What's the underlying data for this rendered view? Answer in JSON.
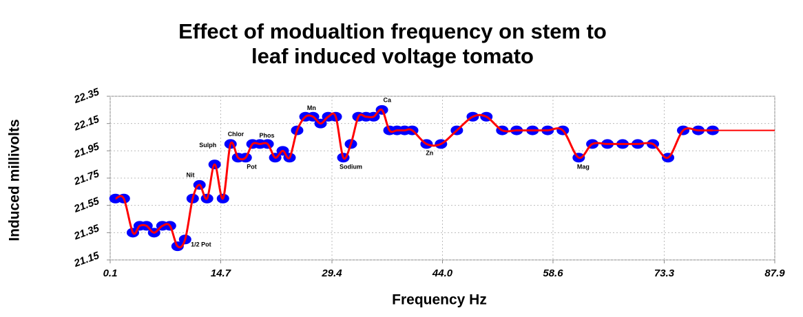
{
  "chart_data": {
    "type": "line",
    "title": [
      "Effect of modualtion frequency on stem to",
      "leaf induced voltage tomato"
    ],
    "x_label": "Frequency Hz",
    "y_label": "Induced millivolts",
    "xlim": [
      0.1,
      87.9
    ],
    "ylim": [
      21.15,
      22.35
    ],
    "xticks": [
      0.1,
      14.7,
      29.4,
      {
        "value": 44.0,
        "label": "44.0"
      },
      58.6,
      73.3,
      87.9
    ],
    "yticks": [
      21.15,
      21.35,
      21.55,
      21.75,
      21.95,
      22.15,
      22.35
    ],
    "grid": true,
    "x": [
      0.8,
      1.9,
      3.1,
      4.0,
      4.9,
      5.9,
      7.0,
      8.0,
      9.0,
      10.0,
      11.0,
      11.9,
      12.9,
      13.9,
      15.0,
      16.0,
      17.0,
      18.0,
      18.9,
      19.9,
      20.9,
      21.9,
      22.9,
      23.8,
      24.8,
      25.9,
      26.9,
      27.9,
      28.9,
      29.9,
      30.9,
      31.9,
      32.9,
      33.9,
      34.9,
      36.0,
      37.0,
      38.0,
      39.0,
      40.0,
      41.9,
      43.8,
      45.9,
      48.0,
      49.8,
      51.9,
      53.8,
      55.9,
      57.9,
      59.9,
      62.0,
      63.8,
      65.8,
      67.8,
      69.8,
      71.8,
      73.8,
      75.8,
      77.8,
      79.7
    ],
    "series": [
      {
        "color": "#ff0000",
        "marker_color": "#0000ff",
        "values": [
          21.6,
          21.6,
          21.35,
          21.4,
          21.4,
          21.35,
          21.4,
          21.4,
          21.25,
          21.3,
          21.6,
          21.7,
          21.6,
          21.85,
          21.6,
          22.0,
          21.9,
          21.9,
          22.0,
          22.0,
          22.0,
          21.9,
          21.95,
          21.9,
          22.1,
          22.2,
          22.2,
          22.15,
          22.2,
          22.2,
          21.9,
          22.0,
          22.2,
          22.2,
          22.2,
          22.25,
          22.1,
          22.1,
          22.1,
          22.1,
          22.0,
          22.0,
          22.1,
          22.2,
          22.2,
          22.1,
          22.1,
          22.1,
          22.1,
          22.1,
          21.9,
          22.0,
          22.0,
          22.0,
          22.0,
          22.0,
          21.9,
          22.1,
          22.1,
          22.1
        ]
      }
    ],
    "annotations": [
      {
        "text": "Nit",
        "x": 10.7,
        "y": 21.77
      },
      {
        "text": "Sulph",
        "x": 13.0,
        "y": 21.99
      },
      {
        "text": "Chlor",
        "x": 16.7,
        "y": 22.07
      },
      {
        "text": "Pot",
        "x": 18.8,
        "y": 21.83
      },
      {
        "text": "Phos",
        "x": 20.8,
        "y": 22.06
      },
      {
        "text": "Mn",
        "x": 26.7,
        "y": 22.26
      },
      {
        "text": "Ca",
        "x": 36.7,
        "y": 22.32
      },
      {
        "text": "Sodium",
        "x": 31.9,
        "y": 21.83
      },
      {
        "text": "Zn",
        "x": 42.3,
        "y": 21.93
      },
      {
        "text": "1/2 Pot",
        "x": 12.1,
        "y": 21.26
      },
      {
        "text": "Mag",
        "x": 62.6,
        "y": 21.83
      }
    ]
  }
}
